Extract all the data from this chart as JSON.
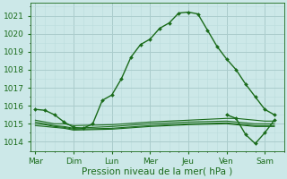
{
  "bg_color": "#cce8e8",
  "grid_color_major": "#aacccc",
  "grid_color_minor": "#bbdddd",
  "line_color": "#1a6b1a",
  "xlabel": "Pression niveau de la mer( hPa )",
  "xlabel_fontsize": 7.5,
  "tick_fontsize": 6.5,
  "ylim": [
    1013.5,
    1021.7
  ],
  "yticks": [
    1014,
    1015,
    1016,
    1017,
    1018,
    1019,
    1020,
    1021
  ],
  "x_labels": [
    "Mar",
    "Dim",
    "Lun",
    "Mer",
    "Jeu",
    "Ven",
    "Sam"
  ],
  "x_positions": [
    0,
    4,
    8,
    12,
    16,
    20,
    24
  ],
  "xlim": [
    -0.5,
    26.0
  ],
  "main_line": {
    "x": [
      0,
      1,
      2,
      3,
      4,
      5,
      6,
      7,
      8,
      9,
      10,
      11,
      12,
      13,
      14,
      15,
      16,
      17,
      18,
      19,
      20,
      21,
      22,
      23,
      24,
      25
    ],
    "y": [
      1015.8,
      1015.75,
      1015.5,
      1015.1,
      1014.8,
      1014.75,
      1015.0,
      1016.3,
      1016.6,
      1017.5,
      1018.7,
      1019.4,
      1019.7,
      1020.3,
      1020.6,
      1021.15,
      1021.2,
      1021.1,
      1020.2,
      1019.3,
      1018.6,
      1018.0,
      1017.2,
      1016.5,
      1015.8,
      1015.5
    ]
  },
  "flat_lines": [
    {
      "x": [
        0,
        1,
        2,
        3,
        4,
        8,
        12,
        16,
        20,
        21,
        22,
        23,
        24,
        25
      ],
      "y": [
        1015.2,
        1015.1,
        1015.0,
        1015.0,
        1014.9,
        1014.95,
        1015.1,
        1015.2,
        1015.3,
        1015.3,
        1015.25,
        1015.2,
        1015.15,
        1015.15
      ]
    },
    {
      "x": [
        0,
        1,
        2,
        3,
        4,
        8,
        12,
        16,
        20,
        21,
        22,
        23,
        24,
        25
      ],
      "y": [
        1015.1,
        1015.0,
        1014.9,
        1014.85,
        1014.75,
        1014.85,
        1015.0,
        1015.1,
        1015.15,
        1015.1,
        1015.05,
        1015.0,
        1015.0,
        1015.0
      ]
    },
    {
      "x": [
        0,
        1,
        2,
        3,
        4,
        8,
        12,
        16,
        20,
        21,
        22,
        23,
        24,
        25
      ],
      "y": [
        1015.0,
        1014.95,
        1014.85,
        1014.8,
        1014.7,
        1014.75,
        1014.9,
        1015.0,
        1015.05,
        1015.0,
        1014.95,
        1014.9,
        1014.9,
        1014.9
      ]
    },
    {
      "x": [
        0,
        1,
        2,
        3,
        4,
        8,
        12,
        16,
        20,
        21,
        22,
        23,
        24,
        25
      ],
      "y": [
        1014.9,
        1014.85,
        1014.8,
        1014.75,
        1014.65,
        1014.7,
        1014.85,
        1014.95,
        1015.0,
        1014.95,
        1014.9,
        1014.85,
        1014.85,
        1014.85
      ]
    }
  ],
  "dip_line": {
    "x": [
      20,
      21,
      22,
      23,
      24,
      25
    ],
    "y": [
      1015.5,
      1015.3,
      1014.4,
      1013.9,
      1014.5,
      1015.2
    ]
  }
}
